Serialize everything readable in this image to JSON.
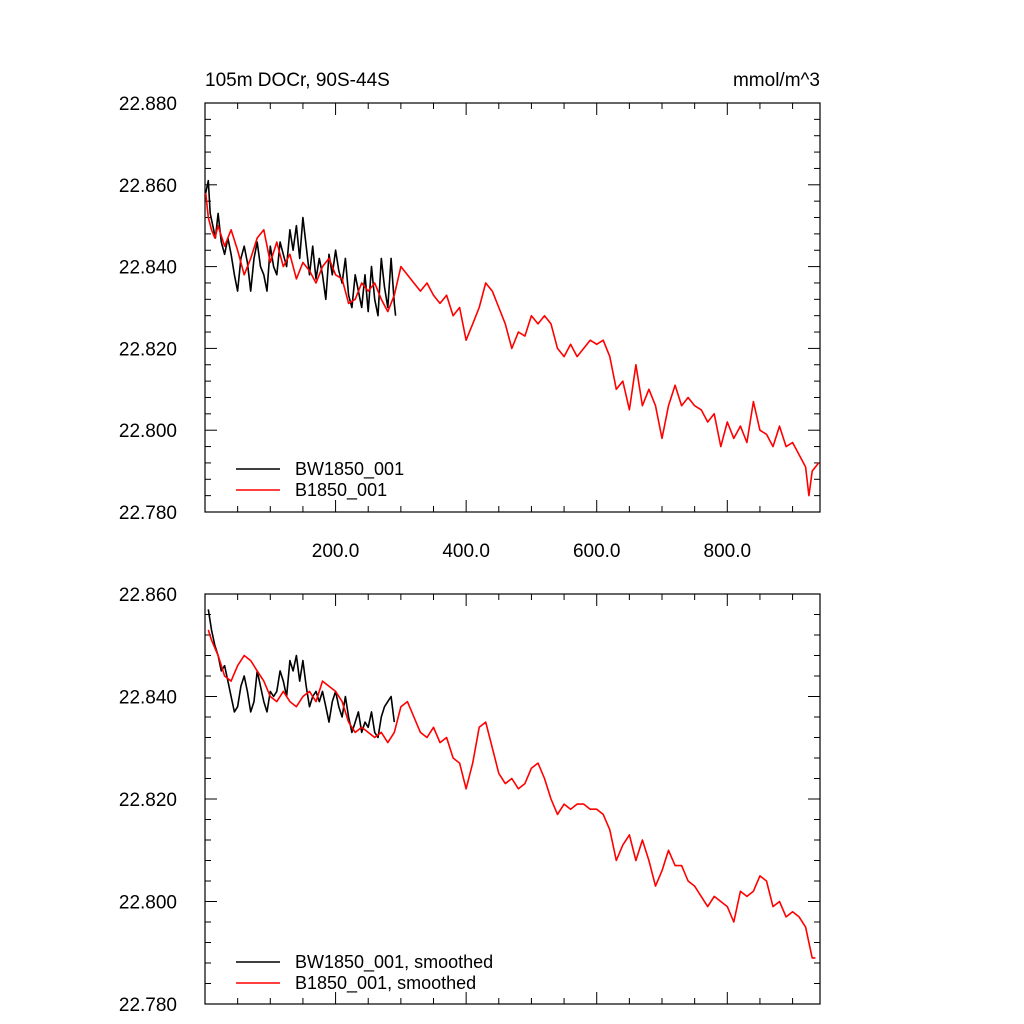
{
  "chart_data": [
    {
      "type": "line",
      "title": "105m DOCr, 90S-44S",
      "units": "mmol/m^3",
      "xlim": [
        0,
        942
      ],
      "ylim": [
        22.78,
        22.88
      ],
      "x_ticks": [
        200,
        400,
        600,
        800
      ],
      "x_tick_labels": [
        "200.0",
        "400.0",
        "600.0",
        "800.0"
      ],
      "y_ticks": [
        22.78,
        22.8,
        22.82,
        22.84,
        22.86,
        22.88
      ],
      "y_tick_labels": [
        "22.780",
        "22.800",
        "22.820",
        "22.840",
        "22.860",
        "22.880"
      ],
      "legend": "bottom-left",
      "series": [
        {
          "name": "BW1850_001",
          "color": "#000000",
          "x": [
            1,
            5,
            8,
            12,
            16,
            20,
            25,
            30,
            35,
            40,
            45,
            50,
            55,
            60,
            65,
            70,
            75,
            80,
            85,
            90,
            95,
            100,
            105,
            110,
            115,
            120,
            125,
            130,
            135,
            140,
            145,
            150,
            155,
            160,
            165,
            170,
            175,
            180,
            185,
            190,
            195,
            200,
            205,
            210,
            215,
            220,
            225,
            230,
            235,
            240,
            245,
            250,
            255,
            260,
            265,
            270,
            275,
            280,
            285,
            290,
            292
          ],
          "values": [
            22.858,
            22.861,
            22.853,
            22.85,
            22.847,
            22.853,
            22.846,
            22.843,
            22.847,
            22.843,
            22.838,
            22.834,
            22.842,
            22.845,
            22.841,
            22.834,
            22.842,
            22.846,
            22.84,
            22.838,
            22.834,
            22.845,
            22.84,
            22.838,
            22.846,
            22.843,
            22.84,
            22.849,
            22.844,
            22.85,
            22.842,
            22.852,
            22.845,
            22.838,
            22.845,
            22.837,
            22.842,
            22.838,
            22.832,
            22.843,
            22.838,
            22.844,
            22.839,
            22.836,
            22.842,
            22.833,
            22.83,
            22.838,
            22.834,
            22.83,
            22.838,
            22.829,
            22.84,
            22.832,
            22.828,
            22.842,
            22.835,
            22.83,
            22.842,
            22.831,
            22.828
          ]
        },
        {
          "name": "B1850_001",
          "color": "#ff0000",
          "x": [
            1,
            5,
            10,
            15,
            20,
            30,
            40,
            50,
            60,
            70,
            80,
            90,
            100,
            110,
            120,
            130,
            140,
            150,
            160,
            170,
            180,
            190,
            200,
            210,
            220,
            230,
            240,
            250,
            260,
            270,
            280,
            290,
            300,
            310,
            320,
            330,
            340,
            350,
            360,
            370,
            380,
            390,
            400,
            410,
            420,
            430,
            440,
            450,
            460,
            470,
            480,
            490,
            500,
            510,
            520,
            530,
            540,
            550,
            560,
            570,
            580,
            590,
            600,
            610,
            620,
            630,
            640,
            650,
            660,
            670,
            680,
            690,
            700,
            710,
            720,
            730,
            740,
            750,
            760,
            770,
            780,
            790,
            800,
            810,
            820,
            830,
            840,
            850,
            860,
            870,
            880,
            890,
            900,
            910,
            920,
            925,
            930,
            935,
            940
          ],
          "values": [
            22.858,
            22.852,
            22.849,
            22.847,
            22.85,
            22.845,
            22.849,
            22.844,
            22.838,
            22.842,
            22.847,
            22.849,
            22.841,
            22.846,
            22.84,
            22.843,
            22.837,
            22.841,
            22.839,
            22.836,
            22.84,
            22.842,
            22.838,
            22.837,
            22.831,
            22.832,
            22.836,
            22.834,
            22.836,
            22.832,
            22.829,
            22.833,
            22.84,
            22.838,
            22.836,
            22.834,
            22.836,
            22.833,
            22.831,
            22.833,
            22.828,
            22.83,
            22.822,
            22.826,
            22.83,
            22.836,
            22.834,
            22.83,
            22.826,
            22.82,
            22.824,
            22.823,
            22.828,
            22.826,
            22.828,
            22.826,
            22.82,
            22.818,
            22.821,
            22.818,
            22.82,
            22.822,
            22.821,
            22.822,
            22.818,
            22.81,
            22.812,
            22.805,
            22.816,
            22.806,
            22.81,
            22.806,
            22.798,
            22.806,
            22.811,
            22.806,
            22.808,
            22.806,
            22.805,
            22.802,
            22.804,
            22.796,
            22.802,
            22.798,
            22.801,
            22.797,
            22.807,
            22.8,
            22.799,
            22.796,
            22.801,
            22.796,
            22.797,
            22.794,
            22.791,
            22.784,
            22.79,
            22.791,
            22.792
          ]
        }
      ]
    },
    {
      "type": "line",
      "xlim": [
        0,
        942
      ],
      "ylim": [
        22.78,
        22.86
      ],
      "x_ticks": [
        200,
        400,
        600,
        800
      ],
      "y_ticks": [
        22.78,
        22.8,
        22.82,
        22.84,
        22.86
      ],
      "y_tick_labels": [
        "22.780",
        "22.800",
        "22.820",
        "22.840",
        "22.860"
      ],
      "legend": "bottom-left",
      "series": [
        {
          "name": "BW1850_001, smoothed",
          "color": "#000000",
          "x": [
            5,
            10,
            15,
            20,
            25,
            30,
            35,
            40,
            45,
            50,
            55,
            60,
            65,
            70,
            75,
            80,
            85,
            90,
            95,
            100,
            105,
            110,
            115,
            120,
            125,
            130,
            135,
            140,
            145,
            150,
            155,
            160,
            165,
            170,
            175,
            180,
            185,
            190,
            195,
            200,
            205,
            210,
            215,
            220,
            225,
            230,
            235,
            240,
            245,
            250,
            255,
            260,
            265,
            270,
            275,
            280,
            285,
            290
          ],
          "values": [
            22.857,
            22.853,
            22.85,
            22.848,
            22.845,
            22.846,
            22.843,
            22.84,
            22.837,
            22.838,
            22.842,
            22.844,
            22.841,
            22.837,
            22.839,
            22.845,
            22.842,
            22.839,
            22.837,
            22.841,
            22.84,
            22.841,
            22.845,
            22.843,
            22.84,
            22.847,
            22.845,
            22.848,
            22.843,
            22.847,
            22.842,
            22.838,
            22.84,
            22.841,
            22.839,
            22.841,
            22.838,
            22.835,
            22.839,
            22.841,
            22.838,
            22.836,
            22.84,
            22.836,
            22.833,
            22.835,
            22.837,
            22.833,
            22.835,
            22.834,
            22.837,
            22.833,
            22.832,
            22.836,
            22.838,
            22.839,
            22.84,
            22.835
          ]
        },
        {
          "name": "B1850_001, smoothed",
          "color": "#ff0000",
          "x": [
            5,
            10,
            20,
            30,
            40,
            50,
            60,
            70,
            80,
            90,
            100,
            110,
            120,
            130,
            140,
            150,
            160,
            170,
            180,
            190,
            200,
            210,
            220,
            230,
            240,
            250,
            260,
            270,
            280,
            290,
            300,
            310,
            320,
            330,
            340,
            350,
            360,
            370,
            380,
            390,
            400,
            410,
            420,
            430,
            440,
            450,
            460,
            470,
            480,
            490,
            500,
            510,
            520,
            530,
            540,
            550,
            560,
            570,
            580,
            590,
            600,
            610,
            620,
            630,
            640,
            650,
            660,
            670,
            680,
            690,
            700,
            710,
            720,
            730,
            740,
            750,
            760,
            770,
            780,
            790,
            800,
            810,
            820,
            830,
            840,
            850,
            860,
            870,
            880,
            890,
            900,
            910,
            920,
            930,
            935
          ],
          "values": [
            22.853,
            22.851,
            22.848,
            22.844,
            22.843,
            22.846,
            22.848,
            22.847,
            22.845,
            22.843,
            22.84,
            22.839,
            22.841,
            22.839,
            22.838,
            22.84,
            22.841,
            22.839,
            22.843,
            22.842,
            22.841,
            22.839,
            22.835,
            22.833,
            22.834,
            22.833,
            22.832,
            22.833,
            22.831,
            22.833,
            22.838,
            22.839,
            22.836,
            22.833,
            22.832,
            22.834,
            22.831,
            22.832,
            22.828,
            22.827,
            22.822,
            22.827,
            22.834,
            22.835,
            22.83,
            22.825,
            22.823,
            22.824,
            22.822,
            22.823,
            22.826,
            22.827,
            22.824,
            22.82,
            22.817,
            22.819,
            22.818,
            22.819,
            22.819,
            22.818,
            22.818,
            22.817,
            22.814,
            22.808,
            22.811,
            22.813,
            22.808,
            22.812,
            22.808,
            22.803,
            22.806,
            22.81,
            22.807,
            22.807,
            22.804,
            22.803,
            22.801,
            22.799,
            22.801,
            22.8,
            22.799,
            22.796,
            22.802,
            22.801,
            22.802,
            22.805,
            22.804,
            22.799,
            22.8,
            22.797,
            22.798,
            22.797,
            22.795,
            22.789,
            22.789
          ]
        }
      ]
    }
  ]
}
